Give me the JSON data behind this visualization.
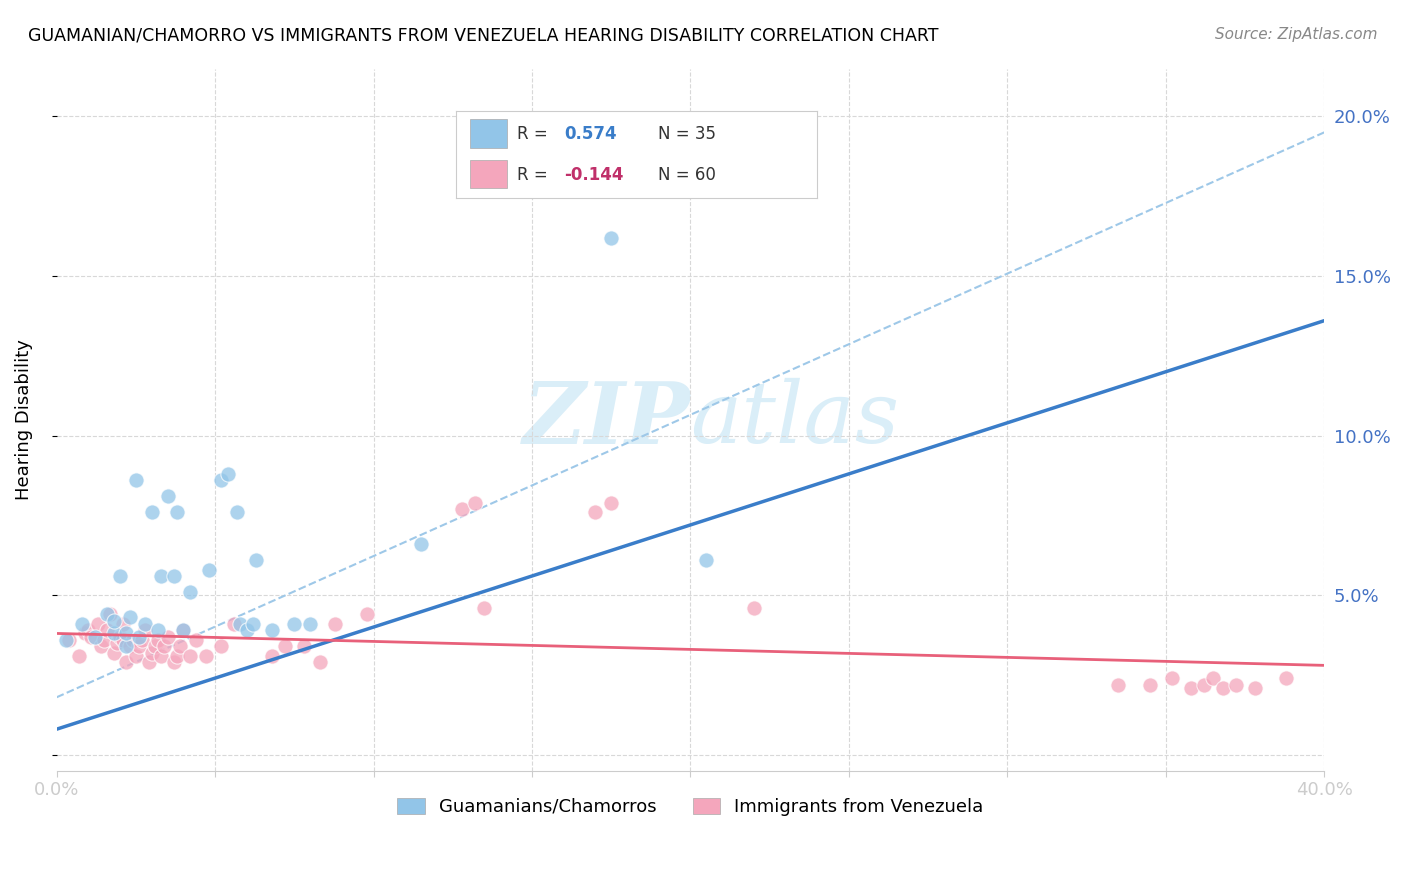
{
  "title": "GUAMANIAN/CHAMORRO VS IMMIGRANTS FROM VENEZUELA HEARING DISABILITY CORRELATION CHART",
  "source": "Source: ZipAtlas.com",
  "ylabel": "Hearing Disability",
  "xlabel": "",
  "xlim": [
    0.0,
    0.4
  ],
  "ylim": [
    -0.005,
    0.215
  ],
  "xticks": [
    0.0,
    0.05,
    0.1,
    0.15,
    0.2,
    0.25,
    0.3,
    0.35,
    0.4
  ],
  "ytick_positions": [
    0.0,
    0.05,
    0.1,
    0.15,
    0.2
  ],
  "ytick_labels_right": [
    "",
    "5.0%",
    "10.0%",
    "15.0%",
    "20.0%"
  ],
  "blue_color": "#92c5e8",
  "pink_color": "#f4a6bc",
  "blue_line_color": "#3a7dc9",
  "pink_line_color": "#e8607a",
  "dashed_line_color": "#9ec8e8",
  "watermark_color": "#daeef8",
  "blue_scatter_x": [
    0.003,
    0.008,
    0.012,
    0.016,
    0.018,
    0.018,
    0.02,
    0.022,
    0.022,
    0.023,
    0.025,
    0.026,
    0.028,
    0.03,
    0.032,
    0.033,
    0.035,
    0.037,
    0.038,
    0.04,
    0.042,
    0.048,
    0.052,
    0.054,
    0.057,
    0.058,
    0.06,
    0.062,
    0.063,
    0.068,
    0.075,
    0.08,
    0.115,
    0.175,
    0.205
  ],
  "blue_scatter_y": [
    0.036,
    0.041,
    0.037,
    0.044,
    0.038,
    0.042,
    0.056,
    0.034,
    0.038,
    0.043,
    0.086,
    0.037,
    0.041,
    0.076,
    0.039,
    0.056,
    0.081,
    0.056,
    0.076,
    0.039,
    0.051,
    0.058,
    0.086,
    0.088,
    0.076,
    0.041,
    0.039,
    0.041,
    0.061,
    0.039,
    0.041,
    0.041,
    0.066,
    0.162,
    0.061
  ],
  "pink_scatter_x": [
    0.004,
    0.007,
    0.009,
    0.01,
    0.011,
    0.013,
    0.014,
    0.015,
    0.016,
    0.017,
    0.018,
    0.019,
    0.02,
    0.021,
    0.021,
    0.022,
    0.023,
    0.024,
    0.025,
    0.026,
    0.027,
    0.028,
    0.029,
    0.03,
    0.031,
    0.032,
    0.033,
    0.034,
    0.035,
    0.037,
    0.038,
    0.039,
    0.04,
    0.042,
    0.044,
    0.047,
    0.052,
    0.056,
    0.068,
    0.072,
    0.078,
    0.083,
    0.088,
    0.098,
    0.128,
    0.132,
    0.135,
    0.17,
    0.175,
    0.22,
    0.335,
    0.345,
    0.352,
    0.358,
    0.362,
    0.365,
    0.368,
    0.372,
    0.378,
    0.388
  ],
  "pink_scatter_y": [
    0.036,
    0.031,
    0.038,
    0.039,
    0.037,
    0.041,
    0.034,
    0.036,
    0.039,
    0.044,
    0.032,
    0.035,
    0.037,
    0.036,
    0.041,
    0.029,
    0.034,
    0.036,
    0.031,
    0.034,
    0.036,
    0.039,
    0.029,
    0.032,
    0.034,
    0.036,
    0.031,
    0.034,
    0.037,
    0.029,
    0.031,
    0.034,
    0.039,
    0.031,
    0.036,
    0.031,
    0.034,
    0.041,
    0.031,
    0.034,
    0.034,
    0.029,
    0.041,
    0.044,
    0.077,
    0.079,
    0.046,
    0.076,
    0.079,
    0.046,
    0.022,
    0.022,
    0.024,
    0.021,
    0.022,
    0.024,
    0.021,
    0.022,
    0.021,
    0.024
  ],
  "blue_trend_x": [
    0.0,
    0.4
  ],
  "blue_trend_y": [
    0.008,
    0.136
  ],
  "pink_trend_x": [
    0.0,
    0.4
  ],
  "pink_trend_y": [
    0.038,
    0.028
  ],
  "dashed_trend_x": [
    0.0,
    0.4
  ],
  "dashed_trend_y": [
    0.018,
    0.195
  ],
  "legend_text1": "R =  0.574   N = 35",
  "legend_text2": "R = -0.144   N = 60",
  "legend_r1_color": "#3a7dc9",
  "legend_r2_color": "#c0306a",
  "legend_n1_color": "#222222",
  "legend_n2_color": "#222222",
  "bottom_legend1": "Guamanians/Chamorros",
  "bottom_legend2": "Immigrants from Venezuela"
}
